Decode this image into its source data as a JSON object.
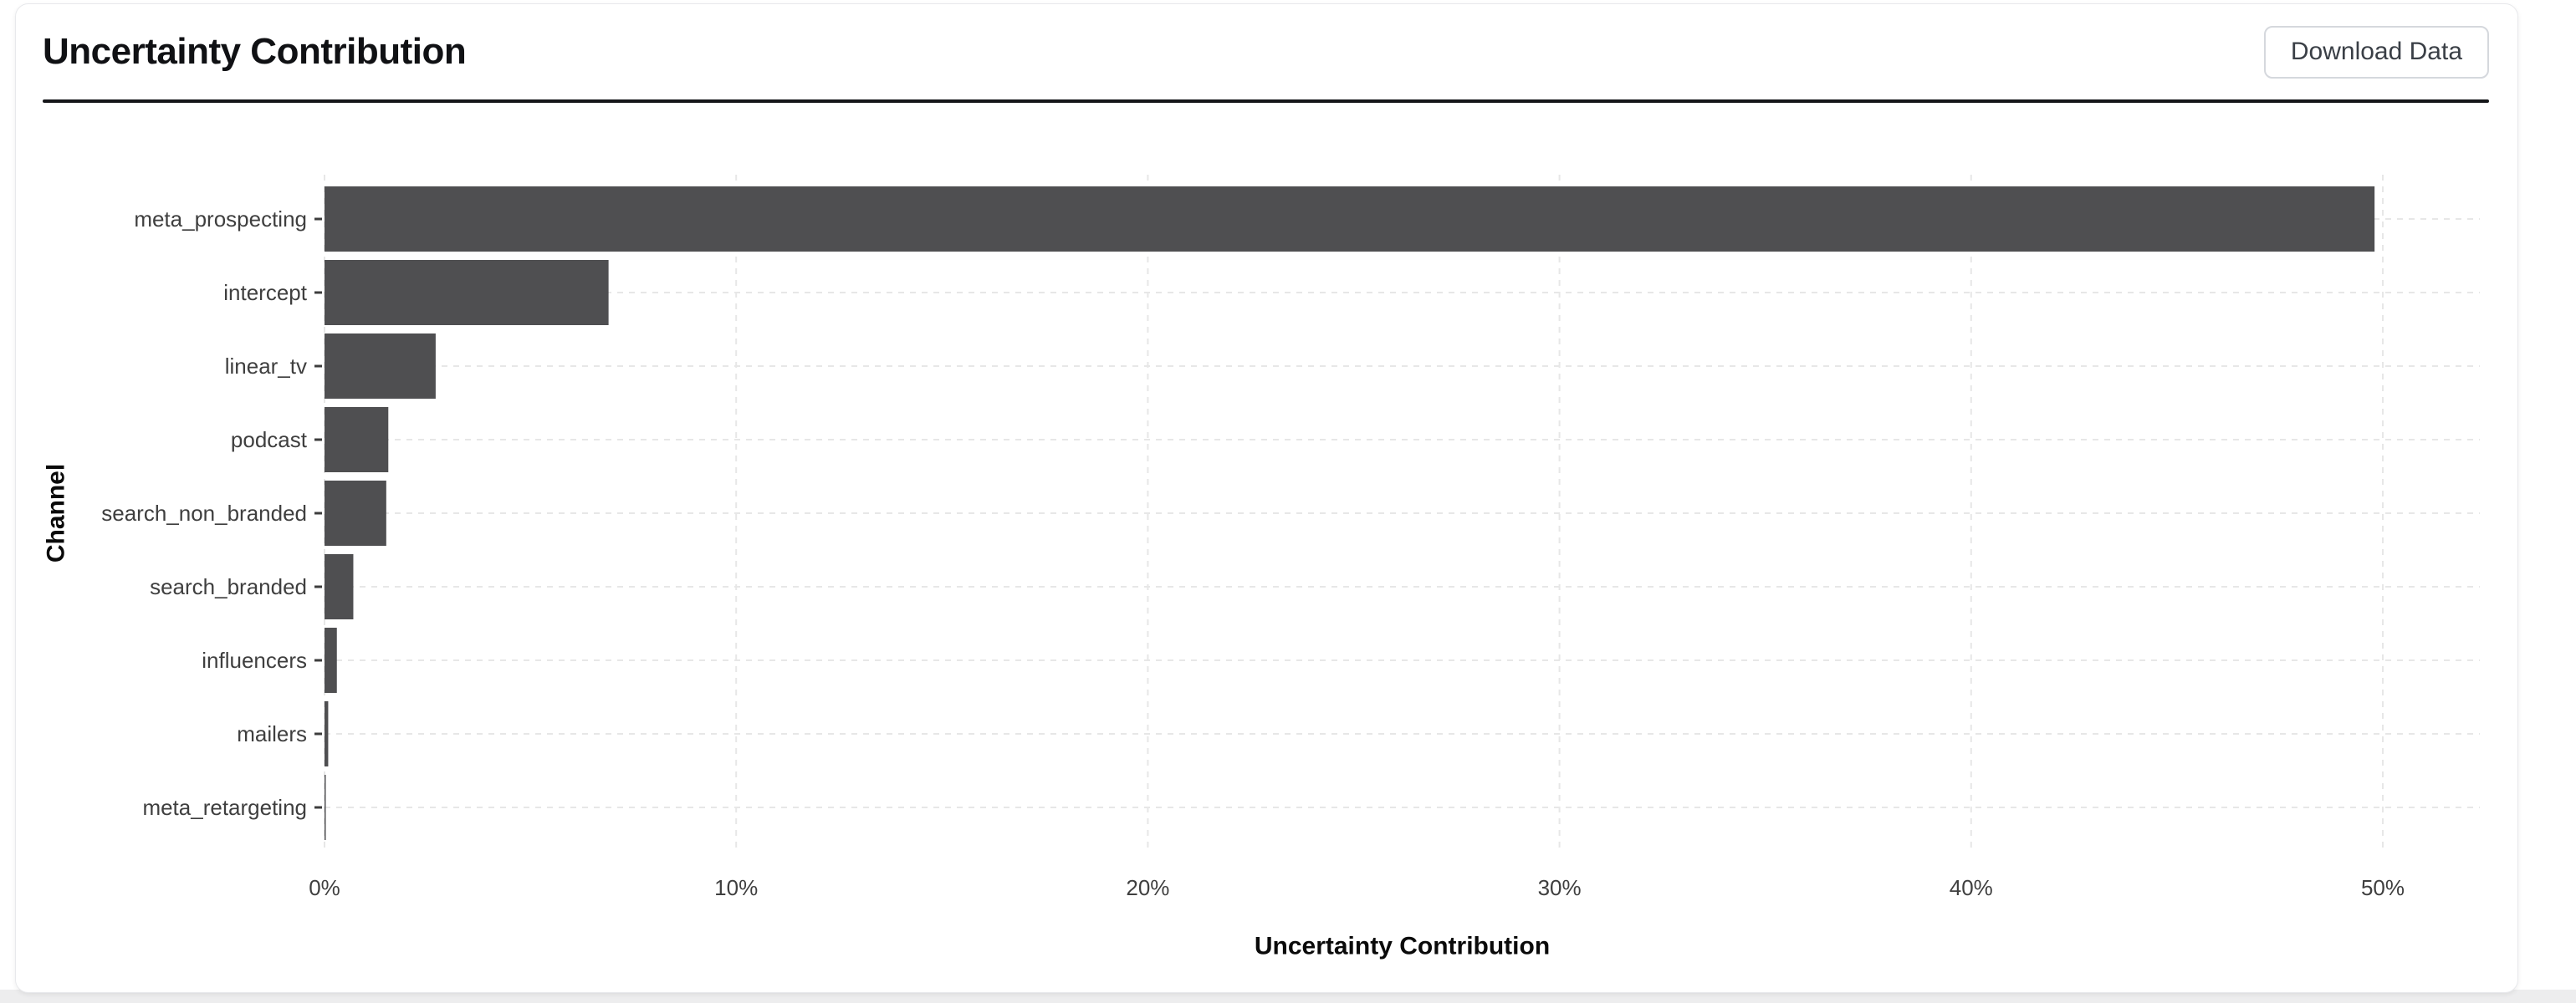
{
  "header": {
    "title": "Uncertainty Contribution",
    "download_button": "Download Data"
  },
  "chart_data": {
    "type": "bar",
    "orientation": "horizontal",
    "title": "Uncertainty Contribution",
    "categories": [
      "meta_prospecting",
      "intercept",
      "linear_tv",
      "podcast",
      "search_non_branded",
      "search_branded",
      "influencers",
      "mailers",
      "meta_retargeting"
    ],
    "values": [
      49.8,
      6.9,
      2.7,
      1.55,
      1.5,
      0.7,
      0.3,
      0.09,
      0.03
    ],
    "xlabel": "Uncertainty Contribution",
    "ylabel": "Channel",
    "x_tick_labels": [
      "0%",
      "10%",
      "20%",
      "30%",
      "40%",
      "50%"
    ],
    "x_tick_values": [
      0,
      10,
      20,
      30,
      40,
      50
    ],
    "xlim": [
      0,
      52.4
    ],
    "grid": "dashed",
    "legend": "none",
    "colors": {
      "bar_fill": "#4f4f51",
      "grid": "#e7e7e7",
      "tick_label": "#3f3f3f",
      "tick_mark": "#3d3d3d",
      "axis_title": "#0a0a0a"
    }
  }
}
